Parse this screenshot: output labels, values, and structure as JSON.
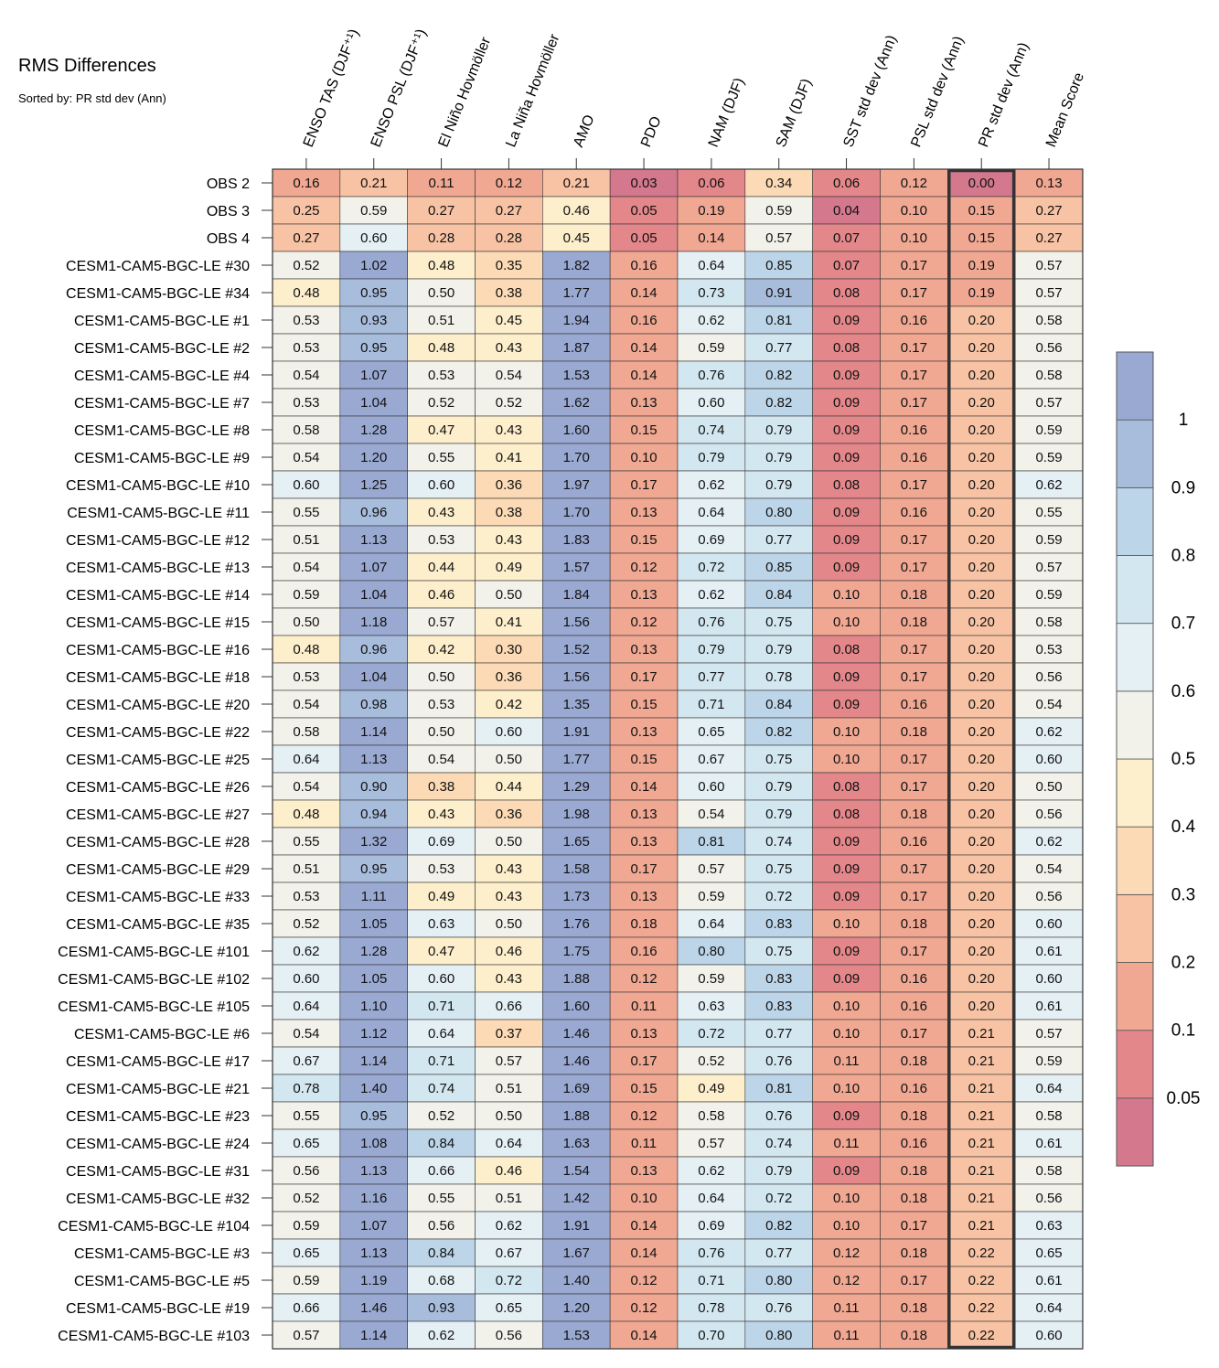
{
  "title": "RMS Differences",
  "subtitle": "Sorted by: PR std dev (Ann)",
  "chart_data": {
    "type": "heatmap",
    "title": "RMS Differences",
    "subtitle": "Sorted by: PR std dev (Ann)",
    "highlighted_column": "PR std dev (Ann)",
    "columns": [
      "ENSO TAS (DJF⁺¹)",
      "ENSO PSL (DJF⁺¹)",
      "El Niño Hovmöller",
      "La Niña Hovmöller",
      "AMO",
      "PDO",
      "NAM (DJF)",
      "SAM (DJF)",
      "SST std dev (Ann)",
      "PSL std dev (Ann)",
      "PR std dev (Ann)",
      "Mean Score"
    ],
    "rows": [
      "OBS 2",
      "OBS 3",
      "OBS 4",
      "CESM1-CAM5-BGC-LE #30",
      "CESM1-CAM5-BGC-LE #34",
      "CESM1-CAM5-BGC-LE #1",
      "CESM1-CAM5-BGC-LE #2",
      "CESM1-CAM5-BGC-LE #4",
      "CESM1-CAM5-BGC-LE #7",
      "CESM1-CAM5-BGC-LE #8",
      "CESM1-CAM5-BGC-LE #9",
      "CESM1-CAM5-BGC-LE #10",
      "CESM1-CAM5-BGC-LE #11",
      "CESM1-CAM5-BGC-LE #12",
      "CESM1-CAM5-BGC-LE #13",
      "CESM1-CAM5-BGC-LE #14",
      "CESM1-CAM5-BGC-LE #15",
      "CESM1-CAM5-BGC-LE #16",
      "CESM1-CAM5-BGC-LE #18",
      "CESM1-CAM5-BGC-LE #20",
      "CESM1-CAM5-BGC-LE #22",
      "CESM1-CAM5-BGC-LE #25",
      "CESM1-CAM5-BGC-LE #26",
      "CESM1-CAM5-BGC-LE #27",
      "CESM1-CAM5-BGC-LE #28",
      "CESM1-CAM5-BGC-LE #29",
      "CESM1-CAM5-BGC-LE #33",
      "CESM1-CAM5-BGC-LE #35",
      "CESM1-CAM5-BGC-LE #101",
      "CESM1-CAM5-BGC-LE #102",
      "CESM1-CAM5-BGC-LE #105",
      "CESM1-CAM5-BGC-LE #6",
      "CESM1-CAM5-BGC-LE #17",
      "CESM1-CAM5-BGC-LE #21",
      "CESM1-CAM5-BGC-LE #23",
      "CESM1-CAM5-BGC-LE #24",
      "CESM1-CAM5-BGC-LE #31",
      "CESM1-CAM5-BGC-LE #32",
      "CESM1-CAM5-BGC-LE #104",
      "CESM1-CAM5-BGC-LE #3",
      "CESM1-CAM5-BGC-LE #5",
      "CESM1-CAM5-BGC-LE #19",
      "CESM1-CAM5-BGC-LE #103"
    ],
    "values": [
      [
        "0.16",
        "0.21",
        "0.11",
        "0.12",
        "0.21",
        "0.03",
        "0.06",
        "0.34",
        "0.06",
        "0.12",
        "0.00",
        "0.13"
      ],
      [
        "0.25",
        "0.59",
        "0.27",
        "0.27",
        "0.46",
        "0.05",
        "0.19",
        "0.59",
        "0.04",
        "0.10",
        "0.15",
        "0.27"
      ],
      [
        "0.27",
        "0.60",
        "0.28",
        "0.28",
        "0.45",
        "0.05",
        "0.14",
        "0.57",
        "0.07",
        "0.10",
        "0.15",
        "0.27"
      ],
      [
        "0.52",
        "1.02",
        "0.48",
        "0.35",
        "1.82",
        "0.16",
        "0.64",
        "0.85",
        "0.07",
        "0.17",
        "0.19",
        "0.57"
      ],
      [
        "0.48",
        "0.95",
        "0.50",
        "0.38",
        "1.77",
        "0.14",
        "0.73",
        "0.91",
        "0.08",
        "0.17",
        "0.19",
        "0.57"
      ],
      [
        "0.53",
        "0.93",
        "0.51",
        "0.45",
        "1.94",
        "0.16",
        "0.62",
        "0.81",
        "0.09",
        "0.16",
        "0.20",
        "0.58"
      ],
      [
        "0.53",
        "0.95",
        "0.48",
        "0.43",
        "1.87",
        "0.14",
        "0.59",
        "0.77",
        "0.08",
        "0.17",
        "0.20",
        "0.56"
      ],
      [
        "0.54",
        "1.07",
        "0.53",
        "0.54",
        "1.53",
        "0.14",
        "0.76",
        "0.82",
        "0.09",
        "0.17",
        "0.20",
        "0.58"
      ],
      [
        "0.53",
        "1.04",
        "0.52",
        "0.52",
        "1.62",
        "0.13",
        "0.60",
        "0.82",
        "0.09",
        "0.17",
        "0.20",
        "0.57"
      ],
      [
        "0.58",
        "1.28",
        "0.47",
        "0.43",
        "1.60",
        "0.15",
        "0.74",
        "0.79",
        "0.09",
        "0.16",
        "0.20",
        "0.59"
      ],
      [
        "0.54",
        "1.20",
        "0.55",
        "0.41",
        "1.70",
        "0.10",
        "0.79",
        "0.79",
        "0.09",
        "0.16",
        "0.20",
        "0.59"
      ],
      [
        "0.60",
        "1.25",
        "0.60",
        "0.36",
        "1.97",
        "0.17",
        "0.62",
        "0.79",
        "0.08",
        "0.17",
        "0.20",
        "0.62"
      ],
      [
        "0.55",
        "0.96",
        "0.43",
        "0.38",
        "1.70",
        "0.13",
        "0.64",
        "0.80",
        "0.09",
        "0.16",
        "0.20",
        "0.55"
      ],
      [
        "0.51",
        "1.13",
        "0.53",
        "0.43",
        "1.83",
        "0.15",
        "0.69",
        "0.77",
        "0.09",
        "0.17",
        "0.20",
        "0.59"
      ],
      [
        "0.54",
        "1.07",
        "0.44",
        "0.49",
        "1.57",
        "0.12",
        "0.72",
        "0.85",
        "0.09",
        "0.17",
        "0.20",
        "0.57"
      ],
      [
        "0.59",
        "1.04",
        "0.46",
        "0.50",
        "1.84",
        "0.13",
        "0.62",
        "0.84",
        "0.10",
        "0.18",
        "0.20",
        "0.59"
      ],
      [
        "0.50",
        "1.18",
        "0.57",
        "0.41",
        "1.56",
        "0.12",
        "0.76",
        "0.75",
        "0.10",
        "0.18",
        "0.20",
        "0.58"
      ],
      [
        "0.48",
        "0.96",
        "0.42",
        "0.30",
        "1.52",
        "0.13",
        "0.79",
        "0.79",
        "0.08",
        "0.17",
        "0.20",
        "0.53"
      ],
      [
        "0.53",
        "1.04",
        "0.50",
        "0.36",
        "1.56",
        "0.17",
        "0.77",
        "0.78",
        "0.09",
        "0.17",
        "0.20",
        "0.56"
      ],
      [
        "0.54",
        "0.98",
        "0.53",
        "0.42",
        "1.35",
        "0.15",
        "0.71",
        "0.84",
        "0.09",
        "0.16",
        "0.20",
        "0.54"
      ],
      [
        "0.58",
        "1.14",
        "0.50",
        "0.60",
        "1.91",
        "0.13",
        "0.65",
        "0.82",
        "0.10",
        "0.18",
        "0.20",
        "0.62"
      ],
      [
        "0.64",
        "1.13",
        "0.54",
        "0.50",
        "1.77",
        "0.15",
        "0.67",
        "0.75",
        "0.10",
        "0.17",
        "0.20",
        "0.60"
      ],
      [
        "0.54",
        "0.90",
        "0.38",
        "0.44",
        "1.29",
        "0.14",
        "0.60",
        "0.79",
        "0.08",
        "0.17",
        "0.20",
        "0.50"
      ],
      [
        "0.48",
        "0.94",
        "0.43",
        "0.36",
        "1.98",
        "0.13",
        "0.54",
        "0.79",
        "0.08",
        "0.18",
        "0.20",
        "0.56"
      ],
      [
        "0.55",
        "1.32",
        "0.69",
        "0.50",
        "1.65",
        "0.13",
        "0.81",
        "0.74",
        "0.09",
        "0.16",
        "0.20",
        "0.62"
      ],
      [
        "0.51",
        "0.95",
        "0.53",
        "0.43",
        "1.58",
        "0.17",
        "0.57",
        "0.75",
        "0.09",
        "0.17",
        "0.20",
        "0.54"
      ],
      [
        "0.53",
        "1.11",
        "0.49",
        "0.43",
        "1.73",
        "0.13",
        "0.59",
        "0.72",
        "0.09",
        "0.17",
        "0.20",
        "0.56"
      ],
      [
        "0.52",
        "1.05",
        "0.63",
        "0.50",
        "1.76",
        "0.18",
        "0.64",
        "0.83",
        "0.10",
        "0.18",
        "0.20",
        "0.60"
      ],
      [
        "0.62",
        "1.28",
        "0.47",
        "0.46",
        "1.75",
        "0.16",
        "0.80",
        "0.75",
        "0.09",
        "0.17",
        "0.20",
        "0.61"
      ],
      [
        "0.60",
        "1.05",
        "0.60",
        "0.43",
        "1.88",
        "0.12",
        "0.59",
        "0.83",
        "0.09",
        "0.16",
        "0.20",
        "0.60"
      ],
      [
        "0.64",
        "1.10",
        "0.71",
        "0.66",
        "1.60",
        "0.11",
        "0.63",
        "0.83",
        "0.10",
        "0.16",
        "0.20",
        "0.61"
      ],
      [
        "0.54",
        "1.12",
        "0.64",
        "0.37",
        "1.46",
        "0.13",
        "0.72",
        "0.77",
        "0.10",
        "0.17",
        "0.21",
        "0.57"
      ],
      [
        "0.67",
        "1.14",
        "0.71",
        "0.57",
        "1.46",
        "0.17",
        "0.52",
        "0.76",
        "0.11",
        "0.18",
        "0.21",
        "0.59"
      ],
      [
        "0.78",
        "1.40",
        "0.74",
        "0.51",
        "1.69",
        "0.15",
        "0.49",
        "0.81",
        "0.10",
        "0.16",
        "0.21",
        "0.64"
      ],
      [
        "0.55",
        "0.95",
        "0.52",
        "0.50",
        "1.88",
        "0.12",
        "0.58",
        "0.76",
        "0.09",
        "0.18",
        "0.21",
        "0.58"
      ],
      [
        "0.65",
        "1.08",
        "0.84",
        "0.64",
        "1.63",
        "0.11",
        "0.57",
        "0.74",
        "0.11",
        "0.16",
        "0.21",
        "0.61"
      ],
      [
        "0.56",
        "1.13",
        "0.66",
        "0.46",
        "1.54",
        "0.13",
        "0.62",
        "0.79",
        "0.09",
        "0.18",
        "0.21",
        "0.58"
      ],
      [
        "0.52",
        "1.16",
        "0.55",
        "0.51",
        "1.42",
        "0.10",
        "0.64",
        "0.72",
        "0.10",
        "0.18",
        "0.21",
        "0.56"
      ],
      [
        "0.59",
        "1.07",
        "0.56",
        "0.62",
        "1.91",
        "0.14",
        "0.69",
        "0.82",
        "0.10",
        "0.17",
        "0.21",
        "0.63"
      ],
      [
        "0.65",
        "1.13",
        "0.84",
        "0.67",
        "1.67",
        "0.14",
        "0.76",
        "0.77",
        "0.12",
        "0.18",
        "0.22",
        "0.65"
      ],
      [
        "0.59",
        "1.19",
        "0.68",
        "0.72",
        "1.40",
        "0.12",
        "0.71",
        "0.80",
        "0.12",
        "0.17",
        "0.22",
        "0.61"
      ],
      [
        "0.66",
        "1.46",
        "0.93",
        "0.65",
        "1.20",
        "0.12",
        "0.78",
        "0.76",
        "0.11",
        "0.18",
        "0.22",
        "0.64"
      ],
      [
        "0.57",
        "1.14",
        "0.62",
        "0.56",
        "1.53",
        "0.14",
        "0.70",
        "0.80",
        "0.11",
        "0.18",
        "0.22",
        "0.60"
      ]
    ],
    "colorbar": {
      "levels": [
        0.05,
        0.1,
        0.2,
        0.3,
        0.4,
        0.5,
        0.6,
        0.7,
        0.8,
        0.9,
        1
      ],
      "tick_labels": [
        "0.05",
        "0.1",
        "0.2",
        "0.3",
        "0.4",
        "0.5",
        "0.6",
        "0.7",
        "0.8",
        "0.9",
        "1"
      ],
      "colors": [
        "#d4788e",
        "#e3878a",
        "#f0a893",
        "#f8c3a4",
        "#fbdab5",
        "#fdeecc",
        "#f3f2ea",
        "#e5f0f5",
        "#d3e7f0",
        "#bdd5e8",
        "#a8bcdc",
        "#9aa9d2"
      ]
    }
  }
}
